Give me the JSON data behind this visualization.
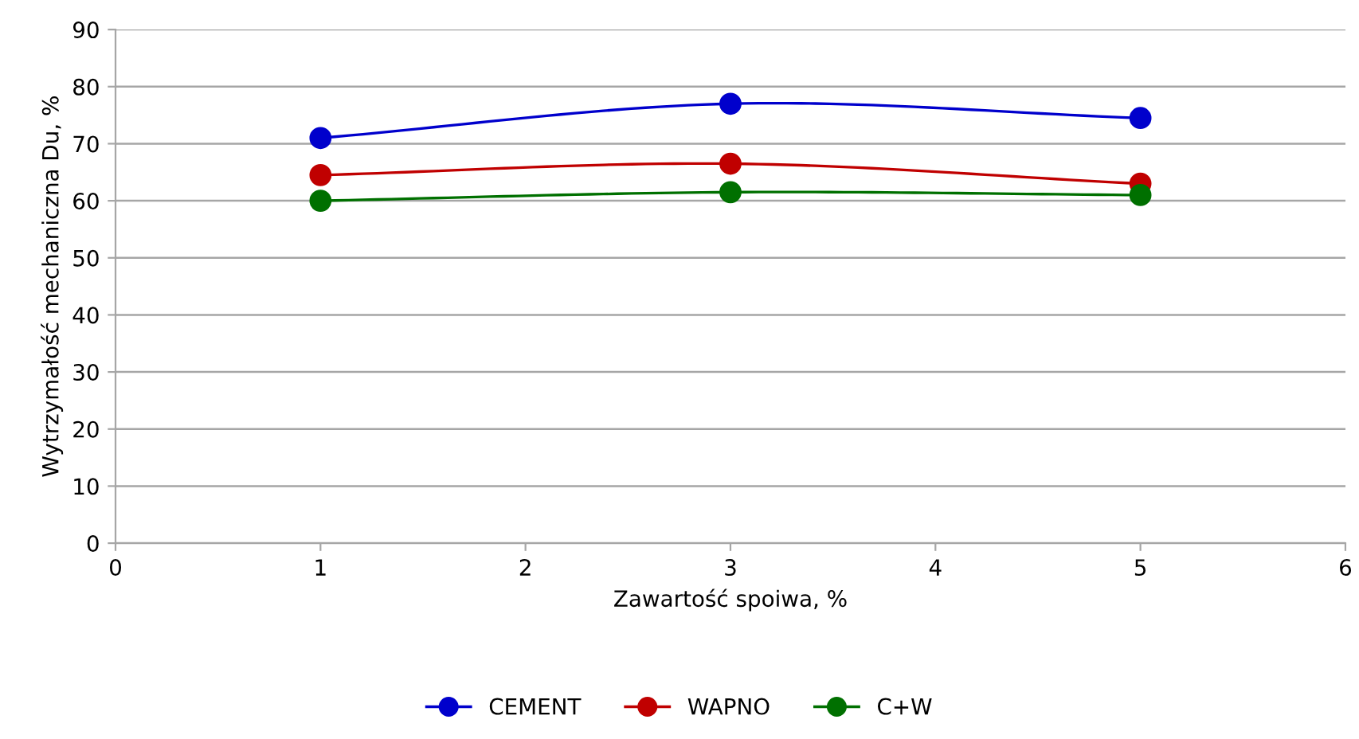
{
  "chart_data": {
    "type": "line",
    "xlabel": "Zawartość spoiwa, %",
    "ylabel": "Wytrzymałość mechaniczna Du, %",
    "x": [
      1,
      3,
      5
    ],
    "series": [
      {
        "name": "CEMENT",
        "color": "#0000cc",
        "values": [
          71,
          77,
          74.5
        ]
      },
      {
        "name": "WAPNO",
        "color": "#c00000",
        "values": [
          64.5,
          66.5,
          63
        ]
      },
      {
        "name": "C+W",
        "color": "#007000",
        "values": [
          60,
          61.5,
          61
        ]
      }
    ],
    "xlim": [
      0,
      6
    ],
    "xticks": [
      0,
      1,
      2,
      3,
      4,
      5,
      6
    ],
    "ylim": [
      0,
      90
    ],
    "yticks": [
      0,
      10,
      20,
      30,
      40,
      50,
      60,
      70,
      80,
      90
    ],
    "grid": "y",
    "legend": "bottom",
    "marker": "circle",
    "line_style": "solid"
  }
}
